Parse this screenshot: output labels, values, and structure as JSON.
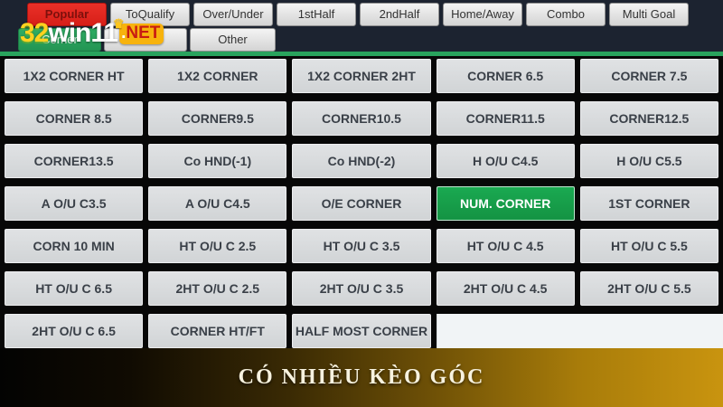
{
  "colors": {
    "topbar_bg": "#1c2330",
    "accent_green": "#29a35d",
    "tab_active_red": "#e02520",
    "selected_market_green": "#17a24e",
    "banner_gold": "#c9940f",
    "button_gray": "#d6d8da"
  },
  "logo": {
    "number": "32",
    "name": "win11",
    "badge_dot": ".",
    "badge_text": "NET",
    "crown": "♛"
  },
  "tabs_row1": [
    {
      "label": "Popular",
      "active": true
    },
    {
      "label": "ToQualify",
      "active": false
    },
    {
      "label": "Over/Under",
      "active": false
    },
    {
      "label": "1stHalf",
      "active": false
    },
    {
      "label": "2ndHalf",
      "active": false
    },
    {
      "label": "Home/Away",
      "active": false
    },
    {
      "label": "Combo",
      "active": false
    },
    {
      "label": "Multi Goal",
      "active": false
    }
  ],
  "tabs_row2": [
    {
      "label": "Corner",
      "active": true
    },
    {
      "label": "Cards",
      "active": false
    },
    {
      "label": "Other",
      "active": false
    }
  ],
  "grid": {
    "selected_market": "NUM. CORNER",
    "cells": [
      "1X2 CORNER HT",
      "1X2 CORNER",
      "1X2 CORNER 2HT",
      "CORNER 6.5",
      "CORNER 7.5",
      "CORNER 8.5",
      "CORNER9.5",
      "CORNER10.5",
      "CORNER11.5",
      "CORNER12.5",
      "CORNER13.5",
      "Co HND(-1)",
      "Co HND(-2)",
      "H O/U C4.5",
      "H O/U C5.5",
      "A O/U C3.5",
      "A O/U C4.5",
      "O/E CORNER",
      "NUM. CORNER",
      "1ST CORNER",
      "CORN 10 MIN",
      "HT O/U C 2.5",
      "HT O/U C 3.5",
      "HT O/U C 4.5",
      "HT O/U C 5.5",
      "HT O/U C 6.5",
      "2HT O/U C 2.5",
      "2HT O/U C 3.5",
      "2HT O/U C 4.5",
      "2HT O/U C 5.5",
      "2HT O/U C 6.5",
      "CORNER HT/FT",
      "HALF MOST CORNER"
    ]
  },
  "banner": {
    "text": "CÓ NHIỀU KÈO GÓC"
  }
}
